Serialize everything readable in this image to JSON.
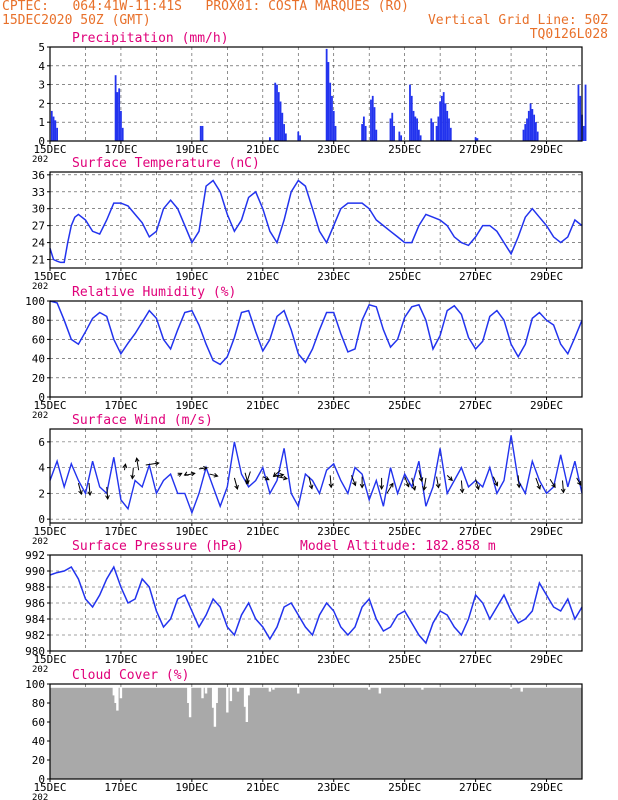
{
  "header": {
    "line1_left": "CPTEC:   064:41W-11:41S   PROX01: COSTA MARQUES (RO)",
    "line2_left": "15DEC2020 50Z (GMT)",
    "line2_right": "Vertical Grid Line: 50Z",
    "line3_right": "TQ0126L028",
    "color": "#e8702a"
  },
  "dates": [
    "15DEC",
    "17DEC",
    "19DEC",
    "21DEC",
    "23DEC",
    "25DEC",
    "27DEC",
    "29DEC"
  ],
  "year_fragment": "202",
  "colors": {
    "title": "#e0007a",
    "line": "#2233ee",
    "bar": "#2233ee",
    "cloud": "#a9a9a9",
    "arrow": "#000000"
  },
  "chart_data": [
    {
      "type": "bar",
      "title": "Precipitation (mm/h)",
      "ylim": [
        0,
        5
      ],
      "yticks": [
        "0",
        "1",
        "2",
        "3",
        "4",
        "5"
      ],
      "x_unit": "days since 15DEC 00Z",
      "bars": [
        [
          0.05,
          1.6
        ],
        [
          0.1,
          1.3
        ],
        [
          0.15,
          1.1
        ],
        [
          0.2,
          0.7
        ],
        [
          1.85,
          3.5
        ],
        [
          1.9,
          2.6
        ],
        [
          1.95,
          2.8
        ],
        [
          2.0,
          1.6
        ],
        [
          2.05,
          0.7
        ],
        [
          4.25,
          0.8
        ],
        [
          4.3,
          0.8
        ],
        [
          6.2,
          0.2
        ],
        [
          6.35,
          3.1
        ],
        [
          6.4,
          3.0
        ],
        [
          6.45,
          2.6
        ],
        [
          6.5,
          2.1
        ],
        [
          6.55,
          1.5
        ],
        [
          6.6,
          0.9
        ],
        [
          6.65,
          0.4
        ],
        [
          7.0,
          0.5
        ],
        [
          7.05,
          0.3
        ],
        [
          7.8,
          4.9
        ],
        [
          7.85,
          4.2
        ],
        [
          7.9,
          3.1
        ],
        [
          7.95,
          2.4
        ],
        [
          8.0,
          1.6
        ],
        [
          8.05,
          0.8
        ],
        [
          8.8,
          0.9
        ],
        [
          8.85,
          1.3
        ],
        [
          8.9,
          0.8
        ],
        [
          9.05,
          2.2
        ],
        [
          9.1,
          2.4
        ],
        [
          9.15,
          1.8
        ],
        [
          9.2,
          0.6
        ],
        [
          9.6,
          1.2
        ],
        [
          9.65,
          1.5
        ],
        [
          9.7,
          0.8
        ],
        [
          9.85,
          0.5
        ],
        [
          9.9,
          0.3
        ],
        [
          10.15,
          3.0
        ],
        [
          10.2,
          2.4
        ],
        [
          10.25,
          1.6
        ],
        [
          10.3,
          1.3
        ],
        [
          10.35,
          1.2
        ],
        [
          10.4,
          0.6
        ],
        [
          10.45,
          0.3
        ],
        [
          10.75,
          1.2
        ],
        [
          10.8,
          1.0
        ],
        [
          10.9,
          0.8
        ],
        [
          10.95,
          1.3
        ],
        [
          11.0,
          2.1
        ],
        [
          11.05,
          2.4
        ],
        [
          11.1,
          2.6
        ],
        [
          11.15,
          2.0
        ],
        [
          11.2,
          1.6
        ],
        [
          11.25,
          1.2
        ],
        [
          11.3,
          0.7
        ],
        [
          12.0,
          0.2
        ],
        [
          12.05,
          0.15
        ],
        [
          13.35,
          0.6
        ],
        [
          13.4,
          0.9
        ],
        [
          13.45,
          1.2
        ],
        [
          13.5,
          1.6
        ],
        [
          13.55,
          2.0
        ],
        [
          13.6,
          1.7
        ],
        [
          13.65,
          1.4
        ],
        [
          13.7,
          1.0
        ],
        [
          13.75,
          0.5
        ],
        [
          14.9,
          3.0
        ],
        [
          14.95,
          2.4
        ],
        [
          15.0,
          1.4
        ],
        [
          15.05,
          0.8
        ],
        [
          15.1,
          3.0
        ]
      ]
    },
    {
      "type": "line",
      "title": "Surface Temperature (nC)",
      "ylim": [
        19.5,
        36.5
      ],
      "yticks": [
        "21",
        "24",
        "27",
        "30",
        "33",
        "36"
      ],
      "x": [
        0,
        0.1,
        0.2,
        0.3,
        0.4,
        0.5,
        0.6,
        0.7,
        0.8,
        1.0,
        1.2,
        1.4,
        1.6,
        1.8,
        2.0,
        2.2,
        2.4,
        2.6,
        2.8,
        3.0,
        3.2,
        3.4,
        3.6,
        3.8,
        4.0,
        4.2,
        4.4,
        4.6,
        4.8,
        5.0,
        5.2,
        5.4,
        5.6,
        5.8,
        6.0,
        6.2,
        6.4,
        6.6,
        6.8,
        7.0,
        7.2,
        7.4,
        7.6,
        7.8,
        8.0,
        8.2,
        8.4,
        8.6,
        8.8,
        9.0,
        9.2,
        9.4,
        9.6,
        9.8,
        10.0,
        10.2,
        10.4,
        10.6,
        10.8,
        11.0,
        11.2,
        11.4,
        11.6,
        11.8,
        12.0,
        12.2,
        12.4,
        12.6,
        12.8,
        13.0,
        13.2,
        13.4,
        13.6,
        13.8,
        14.0,
        14.2,
        14.4,
        14.6,
        14.8,
        15.0
      ],
      "values": [
        23,
        21,
        20.7,
        20.5,
        20.5,
        24,
        27,
        28.5,
        29,
        28,
        26,
        25.5,
        28,
        31,
        31,
        30.5,
        29,
        27.5,
        25,
        26,
        30,
        31.5,
        30,
        27,
        24,
        26,
        34,
        35,
        33,
        29,
        26,
        28,
        32,
        33,
        30,
        26,
        24,
        28,
        33,
        35,
        34,
        30,
        26,
        24,
        27,
        30,
        31,
        31,
        31,
        30,
        28,
        27,
        26,
        25,
        24,
        24,
        27,
        29,
        28.5,
        28,
        27,
        25,
        24,
        23.5,
        25,
        27,
        27,
        26,
        24,
        22,
        25,
        28.5,
        30,
        28.5,
        27,
        25,
        24,
        25,
        28,
        27
      ],
      "line_width": 1.5
    },
    {
      "type": "line",
      "title": "Relative Humidity (%)",
      "ylim": [
        0,
        100
      ],
      "yticks": [
        "0",
        "20",
        "40",
        "60",
        "80",
        "100"
      ],
      "x": [
        0,
        0.2,
        0.4,
        0.6,
        0.8,
        1.0,
        1.2,
        1.4,
        1.6,
        1.8,
        2.0,
        2.2,
        2.4,
        2.6,
        2.8,
        3.0,
        3.2,
        3.4,
        3.6,
        3.8,
        4.0,
        4.2,
        4.4,
        4.6,
        4.8,
        5.0,
        5.2,
        5.4,
        5.6,
        5.8,
        6.0,
        6.2,
        6.4,
        6.6,
        6.8,
        7.0,
        7.2,
        7.4,
        7.6,
        7.8,
        8.0,
        8.2,
        8.4,
        8.6,
        8.8,
        9.0,
        9.2,
        9.4,
        9.6,
        9.8,
        10.0,
        10.2,
        10.4,
        10.6,
        10.8,
        11.0,
        11.2,
        11.4,
        11.6,
        11.8,
        12.0,
        12.2,
        12.4,
        12.6,
        12.8,
        13.0,
        13.2,
        13.4,
        13.6,
        13.8,
        14.0,
        14.2,
        14.4,
        14.6,
        14.8,
        15.0
      ],
      "values": [
        100,
        98,
        80,
        60,
        55,
        68,
        82,
        88,
        84,
        60,
        45,
        56,
        66,
        78,
        90,
        82,
        60,
        50,
        70,
        88,
        90,
        75,
        55,
        38,
        34,
        42,
        62,
        88,
        90,
        68,
        48,
        60,
        84,
        90,
        70,
        45,
        36,
        50,
        70,
        88,
        88,
        66,
        47,
        50,
        80,
        96,
        94,
        70,
        52,
        60,
        83,
        94,
        96,
        80,
        50,
        64,
        90,
        95,
        86,
        62,
        50,
        58,
        84,
        90,
        80,
        55,
        42,
        55,
        82,
        88,
        80,
        75,
        55,
        45,
        62,
        80
      ],
      "line_width": 1.5
    },
    {
      "type": "line",
      "title": "Surface Wind (m/s)",
      "ylim": [
        -0.3,
        7
      ],
      "yticks": [
        "0",
        "2",
        "4",
        "6"
      ],
      "x": [
        0,
        0.2,
        0.4,
        0.6,
        0.8,
        1.0,
        1.2,
        1.4,
        1.6,
        1.8,
        2.0,
        2.2,
        2.4,
        2.6,
        2.8,
        3.0,
        3.2,
        3.4,
        3.6,
        3.8,
        4.0,
        4.2,
        4.4,
        4.6,
        4.8,
        5.0,
        5.2,
        5.4,
        5.6,
        5.8,
        6.0,
        6.2,
        6.4,
        6.6,
        6.8,
        7.0,
        7.2,
        7.4,
        7.6,
        7.8,
        8.0,
        8.2,
        8.4,
        8.6,
        8.8,
        9.0,
        9.2,
        9.4,
        9.6,
        9.8,
        10.0,
        10.2,
        10.4,
        10.6,
        10.8,
        11.0,
        11.2,
        11.4,
        11.6,
        11.8,
        12.0,
        12.2,
        12.4,
        12.6,
        12.8,
        13.0,
        13.2,
        13.4,
        13.6,
        13.8,
        14.0,
        14.2,
        14.4,
        14.6,
        14.8,
        15.0
      ],
      "values": [
        3,
        4.5,
        2.5,
        4.3,
        3,
        2,
        4.5,
        2.5,
        2,
        4.8,
        1.5,
        0.8,
        3,
        2.5,
        4.2,
        2,
        3,
        3.5,
        2,
        2,
        0.5,
        2,
        4,
        2.5,
        1,
        2.5,
        6,
        3.5,
        2.5,
        3,
        4,
        2,
        3,
        5.5,
        2,
        1,
        3.5,
        3,
        2,
        3.8,
        4.3,
        3,
        2,
        4,
        3.5,
        1.5,
        3,
        1,
        4,
        2,
        3.5,
        2.5,
        4.5,
        1,
        2.5,
        5.5,
        2,
        3,
        4,
        2.5,
        3,
        2.5,
        4,
        2,
        3,
        6.5,
        3,
        2,
        4.5,
        3,
        2,
        2.5,
        5,
        2.5,
        4.5,
        2
      ],
      "arrows": [
        [
          0.8,
          2.8,
          0.3,
          -1.1
        ],
        [
          1.1,
          2.8,
          0.1,
          -1.2
        ],
        [
          1.6,
          2.5,
          0.1,
          -1.2
        ],
        [
          2.1,
          3.8,
          0.1,
          0.6
        ],
        [
          2.35,
          4,
          -0.1,
          -1.1
        ],
        [
          2.5,
          3.8,
          -0.2,
          1.2
        ],
        [
          2.7,
          4.2,
          1.3,
          0.2
        ],
        [
          3.6,
          3.4,
          0.4,
          0.2
        ],
        [
          3.8,
          3.4,
          1.0,
          0.2
        ],
        [
          3.85,
          3.5,
          -0.2,
          -0.1
        ],
        [
          4.2,
          3.9,
          0.8,
          0.1
        ],
        [
          4.5,
          3.5,
          0.8,
          -0.2
        ],
        [
          5.2,
          3.2,
          0.3,
          -1.1
        ],
        [
          5.5,
          3.6,
          0.3,
          -1.1
        ],
        [
          5.65,
          3.7,
          -0.4,
          -1.2
        ],
        [
          6,
          3.3,
          0.6,
          -0.3
        ],
        [
          6.3,
          3.3,
          1.0,
          0.2
        ],
        [
          6.4,
          3.3,
          1.0,
          -0.2
        ],
        [
          6.5,
          3.8,
          -0.7,
          -0.6
        ],
        [
          7.3,
          3.3,
          0.3,
          -1.2
        ],
        [
          7.9,
          3.4,
          0.1,
          -1.2
        ],
        [
          8.5,
          3.4,
          0.4,
          -1.0
        ],
        [
          8.8,
          3.3,
          0,
          -1.1
        ],
        [
          9.35,
          3.2,
          0,
          -1.1
        ],
        [
          9.5,
          2.0,
          0.6,
          1.0
        ],
        [
          10,
          3.3,
          0.4,
          -1.0
        ],
        [
          10.2,
          3.2,
          0.3,
          -1.2
        ],
        [
          10.4,
          3.8,
          0.3,
          -1.1
        ],
        [
          10.6,
          3.2,
          -0.2,
          -1.2
        ],
        [
          10.9,
          3.3,
          0.2,
          -1.1
        ],
        [
          11.2,
          3.4,
          0.5,
          -0.5
        ],
        [
          11.6,
          3.0,
          0.1,
          -1.2
        ],
        [
          12,
          3.1,
          0.3,
          -1.0
        ],
        [
          12.5,
          3.3,
          0.4,
          -0.9
        ],
        [
          13.2,
          3.4,
          0.1,
          -1.2
        ],
        [
          13.7,
          3.2,
          0.4,
          -1.1
        ],
        [
          14.1,
          3.1,
          0.5,
          -0.8
        ],
        [
          14.45,
          3.0,
          0.1,
          -1.2
        ],
        [
          14.85,
          3.2,
          0.4,
          -0.7
        ]
      ]
    },
    {
      "type": "line",
      "title": "Surface Pressure (hPa)",
      "annotation": "Model Altitude: 182.858  m",
      "ylim": [
        980,
        992
      ],
      "yticks": [
        "980",
        "982",
        "984",
        "986",
        "988",
        "990",
        "992"
      ],
      "x": [
        0,
        0.2,
        0.4,
        0.6,
        0.8,
        1.0,
        1.2,
        1.4,
        1.6,
        1.8,
        2.0,
        2.2,
        2.4,
        2.6,
        2.8,
        3.0,
        3.2,
        3.4,
        3.6,
        3.8,
        4.0,
        4.2,
        4.4,
        4.6,
        4.8,
        5.0,
        5.2,
        5.4,
        5.6,
        5.8,
        6.0,
        6.2,
        6.4,
        6.6,
        6.8,
        7.0,
        7.2,
        7.4,
        7.6,
        7.8,
        8.0,
        8.2,
        8.4,
        8.6,
        8.8,
        9.0,
        9.2,
        9.4,
        9.6,
        9.8,
        10.0,
        10.2,
        10.4,
        10.6,
        10.8,
        11.0,
        11.2,
        11.4,
        11.6,
        11.8,
        12.0,
        12.2,
        12.4,
        12.6,
        12.8,
        13.0,
        13.2,
        13.4,
        13.6,
        13.8,
        14.0,
        14.2,
        14.4,
        14.6,
        14.8,
        15.0
      ],
      "values": [
        989.5,
        989.8,
        990,
        990.5,
        989,
        986.5,
        985.5,
        987,
        989,
        990.5,
        988,
        986,
        986.5,
        989,
        988,
        985,
        983,
        984,
        986.5,
        987,
        985,
        983,
        984.5,
        986.5,
        985.5,
        983,
        982,
        984.5,
        986,
        984,
        983,
        981.5,
        983,
        985.5,
        986,
        984.5,
        983,
        982,
        984.5,
        986,
        985,
        983,
        982,
        983,
        985.5,
        986.5,
        984,
        982.5,
        983,
        984.5,
        985,
        983.5,
        982,
        981,
        983.5,
        985,
        984.5,
        983,
        982,
        984,
        987,
        986,
        984,
        985.5,
        987,
        985,
        983.5,
        984,
        985,
        988.5,
        987,
        985.5,
        985,
        986.5,
        984,
        985.5
      ],
      "line_width": 1.5
    },
    {
      "type": "bar",
      "title": "Cloud Cover (%)",
      "ylim": [
        0,
        100
      ],
      "yticks": [
        "0",
        "20",
        "40",
        "60",
        "80",
        "100"
      ],
      "x_unit": "days since 15DEC 00Z",
      "gaps": [
        [
          1.8,
          88
        ],
        [
          1.85,
          80
        ],
        [
          1.9,
          72
        ],
        [
          2.0,
          85
        ],
        [
          3.9,
          80
        ],
        [
          3.95,
          65
        ],
        [
          4.3,
          85
        ],
        [
          4.4,
          90
        ],
        [
          4.6,
          75
        ],
        [
          4.65,
          55
        ],
        [
          4.7,
          80
        ],
        [
          5.0,
          70
        ],
        [
          5.1,
          82
        ],
        [
          5.3,
          92
        ],
        [
          5.5,
          76
        ],
        [
          5.55,
          60
        ],
        [
          5.6,
          88
        ],
        [
          6.2,
          92
        ],
        [
          6.3,
          94
        ],
        [
          7.0,
          90
        ],
        [
          9.0,
          94
        ],
        [
          9.3,
          90
        ],
        [
          10.5,
          94
        ],
        [
          13.0,
          95
        ],
        [
          13.3,
          92
        ]
      ],
      "base_value": 96
    }
  ]
}
